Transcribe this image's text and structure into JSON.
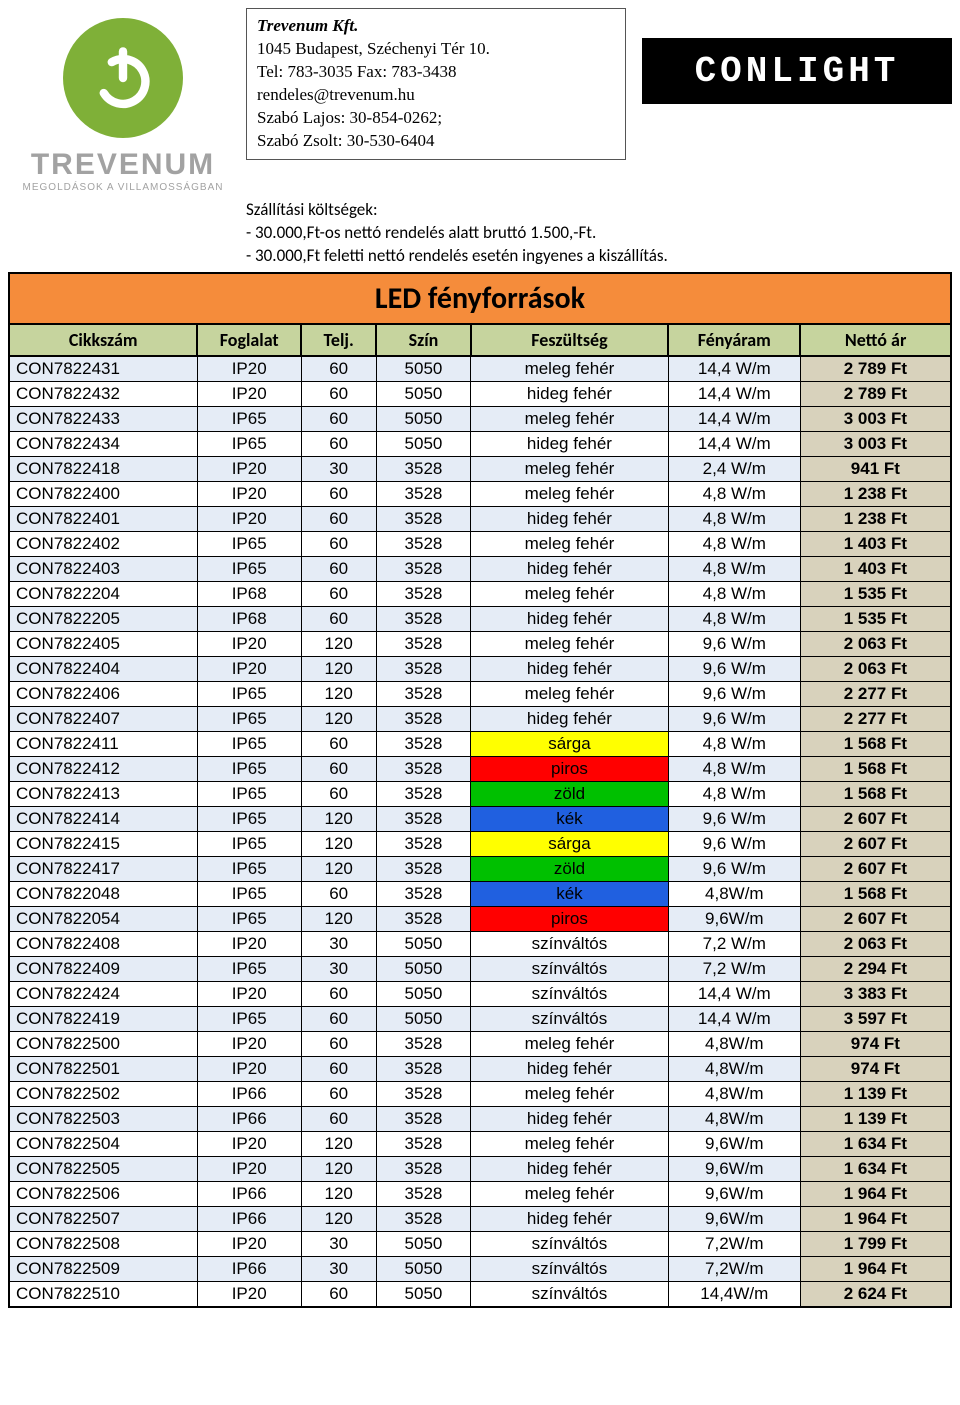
{
  "company": {
    "name": "Trevenum Kft.",
    "address": "1045 Budapest, Széchenyi Tér 10.",
    "tel": "Tel: 783-3035 Fax: 783-3438",
    "email": "rendeles@trevenum.hu",
    "contact1": "Szabó Lajos:    30-854-0262;",
    "contact2": "Szabó Zsolt:    30-530-6404"
  },
  "logo": {
    "word": "TREVENUM",
    "tag": "MEGOLDÁSOK A VILLAMOSSÁGBAN"
  },
  "brand": "CONLIGHT",
  "shipping": {
    "title": "Szállítási költségek:",
    "line1": "- 30.000,Ft-os nettó rendelés alatt  bruttó 1.500,-Ft.",
    "line2": "- 30.000,Ft feletti nettó rendelés esetén ingyenes a kiszállítás."
  },
  "colors": {
    "title_bg": "#f58c3b",
    "header_bg": "#c6d49e",
    "alt_bg": "#e5ecf6",
    "price_bg": "#d8d2bc",
    "yellow": "#ffff00",
    "red": "#ff0000",
    "green": "#00c000",
    "blue": "#2060e0"
  },
  "table": {
    "title": "LED fényforrások",
    "columns": [
      "Cikkszám",
      "Foglalat",
      "Telj.",
      "Szín",
      "Feszültség",
      "Fényáram",
      "Nettó ár"
    ],
    "rows": [
      {
        "code": "CON7822431",
        "ip": "IP20",
        "telj": "60",
        "szin": "5050",
        "fesz": "meleg fehér",
        "feny": "14,4 W/m",
        "price": "2 789 Ft",
        "alt": true
      },
      {
        "code": "CON7822432",
        "ip": "IP20",
        "telj": "60",
        "szin": "5050",
        "fesz": "hideg fehér",
        "feny": "14,4 W/m",
        "price": "2 789 Ft"
      },
      {
        "code": "CON7822433",
        "ip": "IP65",
        "telj": "60",
        "szin": "5050",
        "fesz": "meleg fehér",
        "feny": "14,4 W/m",
        "price": "3 003 Ft",
        "alt": true
      },
      {
        "code": "CON7822434",
        "ip": "IP65",
        "telj": "60",
        "szin": "5050",
        "fesz": "hideg fehér",
        "feny": "14,4 W/m",
        "price": "3 003 Ft"
      },
      {
        "code": "CON7822418",
        "ip": "IP20",
        "telj": "30",
        "szin": "3528",
        "fesz": "meleg fehér",
        "feny": "2,4 W/m",
        "price": "941 Ft",
        "alt": true
      },
      {
        "code": "CON7822400",
        "ip": "IP20",
        "telj": "60",
        "szin": "3528",
        "fesz": "meleg fehér",
        "feny": "4,8 W/m",
        "price": "1 238 Ft"
      },
      {
        "code": "CON7822401",
        "ip": "IP20",
        "telj": "60",
        "szin": "3528",
        "fesz": "hideg fehér",
        "feny": "4,8 W/m",
        "price": "1 238 Ft",
        "alt": true
      },
      {
        "code": "CON7822402",
        "ip": "IP65",
        "telj": "60",
        "szin": "3528",
        "fesz": "meleg fehér",
        "feny": "4,8 W/m",
        "price": "1 403 Ft"
      },
      {
        "code": "CON7822403",
        "ip": "IP65",
        "telj": "60",
        "szin": "3528",
        "fesz": "hideg fehér",
        "feny": "4,8 W/m",
        "price": "1 403 Ft",
        "alt": true
      },
      {
        "code": "CON7822204",
        "ip": "IP68",
        "telj": "60",
        "szin": "3528",
        "fesz": "meleg fehér",
        "feny": "4,8 W/m",
        "price": "1 535 Ft"
      },
      {
        "code": "CON7822205",
        "ip": "IP68",
        "telj": "60",
        "szin": "3528",
        "fesz": "hideg fehér",
        "feny": "4,8 W/m",
        "price": "1 535 Ft",
        "alt": true
      },
      {
        "code": "CON7822405",
        "ip": "IP20",
        "telj": "120",
        "szin": "3528",
        "fesz": "meleg fehér",
        "feny": "9,6 W/m",
        "price": "2 063 Ft"
      },
      {
        "code": "CON7822404",
        "ip": "IP20",
        "telj": "120",
        "szin": "3528",
        "fesz": "hideg fehér",
        "feny": "9,6 W/m",
        "price": "2 063 Ft",
        "alt": true
      },
      {
        "code": "CON7822406",
        "ip": "IP65",
        "telj": "120",
        "szin": "3528",
        "fesz": "meleg fehér",
        "feny": "9,6 W/m",
        "price": "2 277 Ft"
      },
      {
        "code": "CON7822407",
        "ip": "IP65",
        "telj": "120",
        "szin": "3528",
        "fesz": "hideg fehér",
        "feny": "9,6 W/m",
        "price": "2 277 Ft",
        "alt": true
      },
      {
        "code": "CON7822411",
        "ip": "IP65",
        "telj": "60",
        "szin": "3528",
        "fesz": "sárga",
        "fesz_bg": "yellow",
        "feny": "4,8 W/m",
        "price": "1 568 Ft"
      },
      {
        "code": "CON7822412",
        "ip": "IP65",
        "telj": "60",
        "szin": "3528",
        "fesz": "piros",
        "fesz_bg": "red",
        "feny": "4,8 W/m",
        "price": "1 568 Ft",
        "alt": true
      },
      {
        "code": "CON7822413",
        "ip": "IP65",
        "telj": "60",
        "szin": "3528",
        "fesz": "zöld",
        "fesz_bg": "green",
        "feny": "4,8 W/m",
        "price": "1 568 Ft"
      },
      {
        "code": "CON7822414",
        "ip": "IP65",
        "telj": "120",
        "szin": "3528",
        "fesz": "kék",
        "fesz_bg": "blue",
        "feny": "9,6 W/m",
        "price": "2 607 Ft",
        "alt": true
      },
      {
        "code": "CON7822415",
        "ip": "IP65",
        "telj": "120",
        "szin": "3528",
        "fesz": "sárga",
        "fesz_bg": "yellow",
        "feny": "9,6 W/m",
        "price": "2 607 Ft"
      },
      {
        "code": "CON7822417",
        "ip": "IP65",
        "telj": "120",
        "szin": "3528",
        "fesz": "zöld",
        "fesz_bg": "green",
        "feny": "9,6 W/m",
        "price": "2 607 Ft",
        "alt": true
      },
      {
        "code": "CON7822048",
        "ip": "IP65",
        "telj": "60",
        "szin": "3528",
        "fesz": "kék",
        "fesz_bg": "blue",
        "feny": "4,8W/m",
        "price": "1 568 Ft"
      },
      {
        "code": "CON7822054",
        "ip": "IP65",
        "telj": "120",
        "szin": "3528",
        "fesz": "piros",
        "fesz_bg": "red",
        "feny": "9,6W/m",
        "price": "2 607 Ft",
        "alt": true
      },
      {
        "code": "CON7822408",
        "ip": "IP20",
        "telj": "30",
        "szin": "5050",
        "fesz": "színváltós",
        "feny": "7,2 W/m",
        "price": "2 063 Ft"
      },
      {
        "code": "CON7822409",
        "ip": "IP65",
        "telj": "30",
        "szin": "5050",
        "fesz": "színváltós",
        "feny": "7,2 W/m",
        "price": "2 294 Ft",
        "alt": true
      },
      {
        "code": "CON7822424",
        "ip": "IP20",
        "telj": "60",
        "szin": "5050",
        "fesz": "színváltós",
        "feny": "14,4 W/m",
        "price": "3 383 Ft"
      },
      {
        "code": "CON7822419",
        "ip": "IP65",
        "telj": "60",
        "szin": "5050",
        "fesz": "színváltós",
        "feny": "14,4 W/m",
        "price": "3 597 Ft",
        "alt": true
      },
      {
        "code": "CON7822500",
        "ip": "IP20",
        "telj": "60",
        "szin": "3528",
        "fesz": "meleg fehér",
        "feny": "4,8W/m",
        "price": "974 Ft"
      },
      {
        "code": "CON7822501",
        "ip": "IP20",
        "telj": "60",
        "szin": "3528",
        "fesz": "hideg fehér",
        "feny": "4,8W/m",
        "price": "974 Ft",
        "alt": true
      },
      {
        "code": "CON7822502",
        "ip": "IP66",
        "telj": "60",
        "szin": "3528",
        "fesz": "meleg fehér",
        "feny": "4,8W/m",
        "price": "1 139 Ft"
      },
      {
        "code": "CON7822503",
        "ip": "IP66",
        "telj": "60",
        "szin": "3528",
        "fesz": "hideg fehér",
        "feny": "4,8W/m",
        "price": "1 139 Ft",
        "alt": true
      },
      {
        "code": "CON7822504",
        "ip": "IP20",
        "telj": "120",
        "szin": "3528",
        "fesz": "meleg fehér",
        "feny": "9,6W/m",
        "price": "1 634 Ft"
      },
      {
        "code": "CON7822505",
        "ip": "IP20",
        "telj": "120",
        "szin": "3528",
        "fesz": "hideg fehér",
        "feny": "9,6W/m",
        "price": "1 634 Ft",
        "alt": true
      },
      {
        "code": "CON7822506",
        "ip": "IP66",
        "telj": "120",
        "szin": "3528",
        "fesz": "meleg fehér",
        "feny": "9,6W/m",
        "price": "1 964 Ft"
      },
      {
        "code": "CON7822507",
        "ip": "IP66",
        "telj": "120",
        "szin": "3528",
        "fesz": "hideg fehér",
        "feny": "9,6W/m",
        "price": "1 964 Ft",
        "alt": true
      },
      {
        "code": "CON7822508",
        "ip": "IP20",
        "telj": "30",
        "szin": "5050",
        "fesz": "színváltós",
        "feny": "7,2W/m",
        "price": "1 799 Ft"
      },
      {
        "code": "CON7822509",
        "ip": "IP66",
        "telj": "30",
        "szin": "5050",
        "fesz": "színváltós",
        "feny": "7,2W/m",
        "price": "1 964 Ft",
        "alt": true
      },
      {
        "code": "CON7822510",
        "ip": "IP20",
        "telj": "60",
        "szin": "5050",
        "fesz": "színváltós",
        "feny": "14,4W/m",
        "price": "2 624 Ft"
      }
    ]
  }
}
